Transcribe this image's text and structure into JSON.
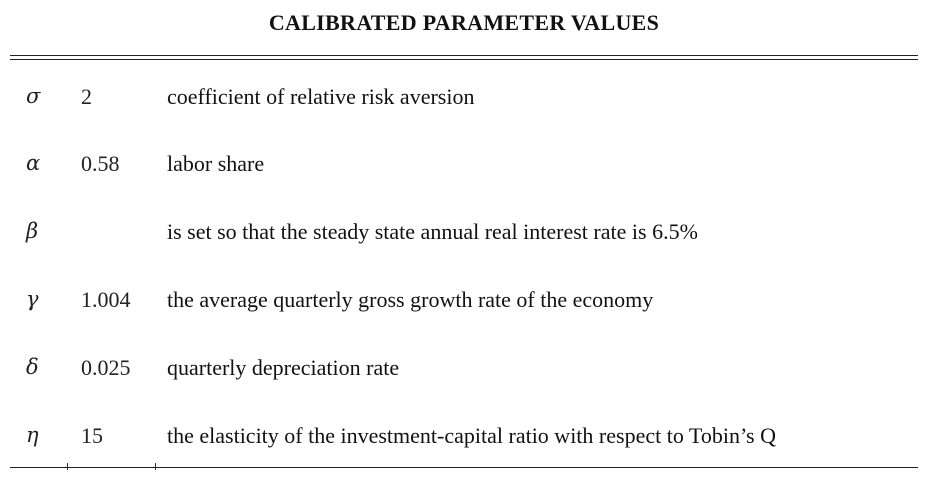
{
  "title": "CALIBRATED PARAMETER VALUES",
  "rows": [
    {
      "symbol": "σ",
      "value": "2",
      "description": "coefficient of relative risk aversion"
    },
    {
      "symbol": "α",
      "value": "0.58",
      "description": "labor share"
    },
    {
      "symbol": "β",
      "value": "",
      "description": "is set so that the steady state annual real interest rate is 6.5%"
    },
    {
      "symbol": "γ",
      "value": "1.004",
      "description": "the average quarterly gross growth rate of the economy"
    },
    {
      "symbol": "δ",
      "value": "0.025",
      "description": "quarterly depreciation rate"
    },
    {
      "symbol": "η",
      "value": "15",
      "description": "the elasticity of the investment-capital ratio with respect to Tobin’s Q"
    }
  ]
}
